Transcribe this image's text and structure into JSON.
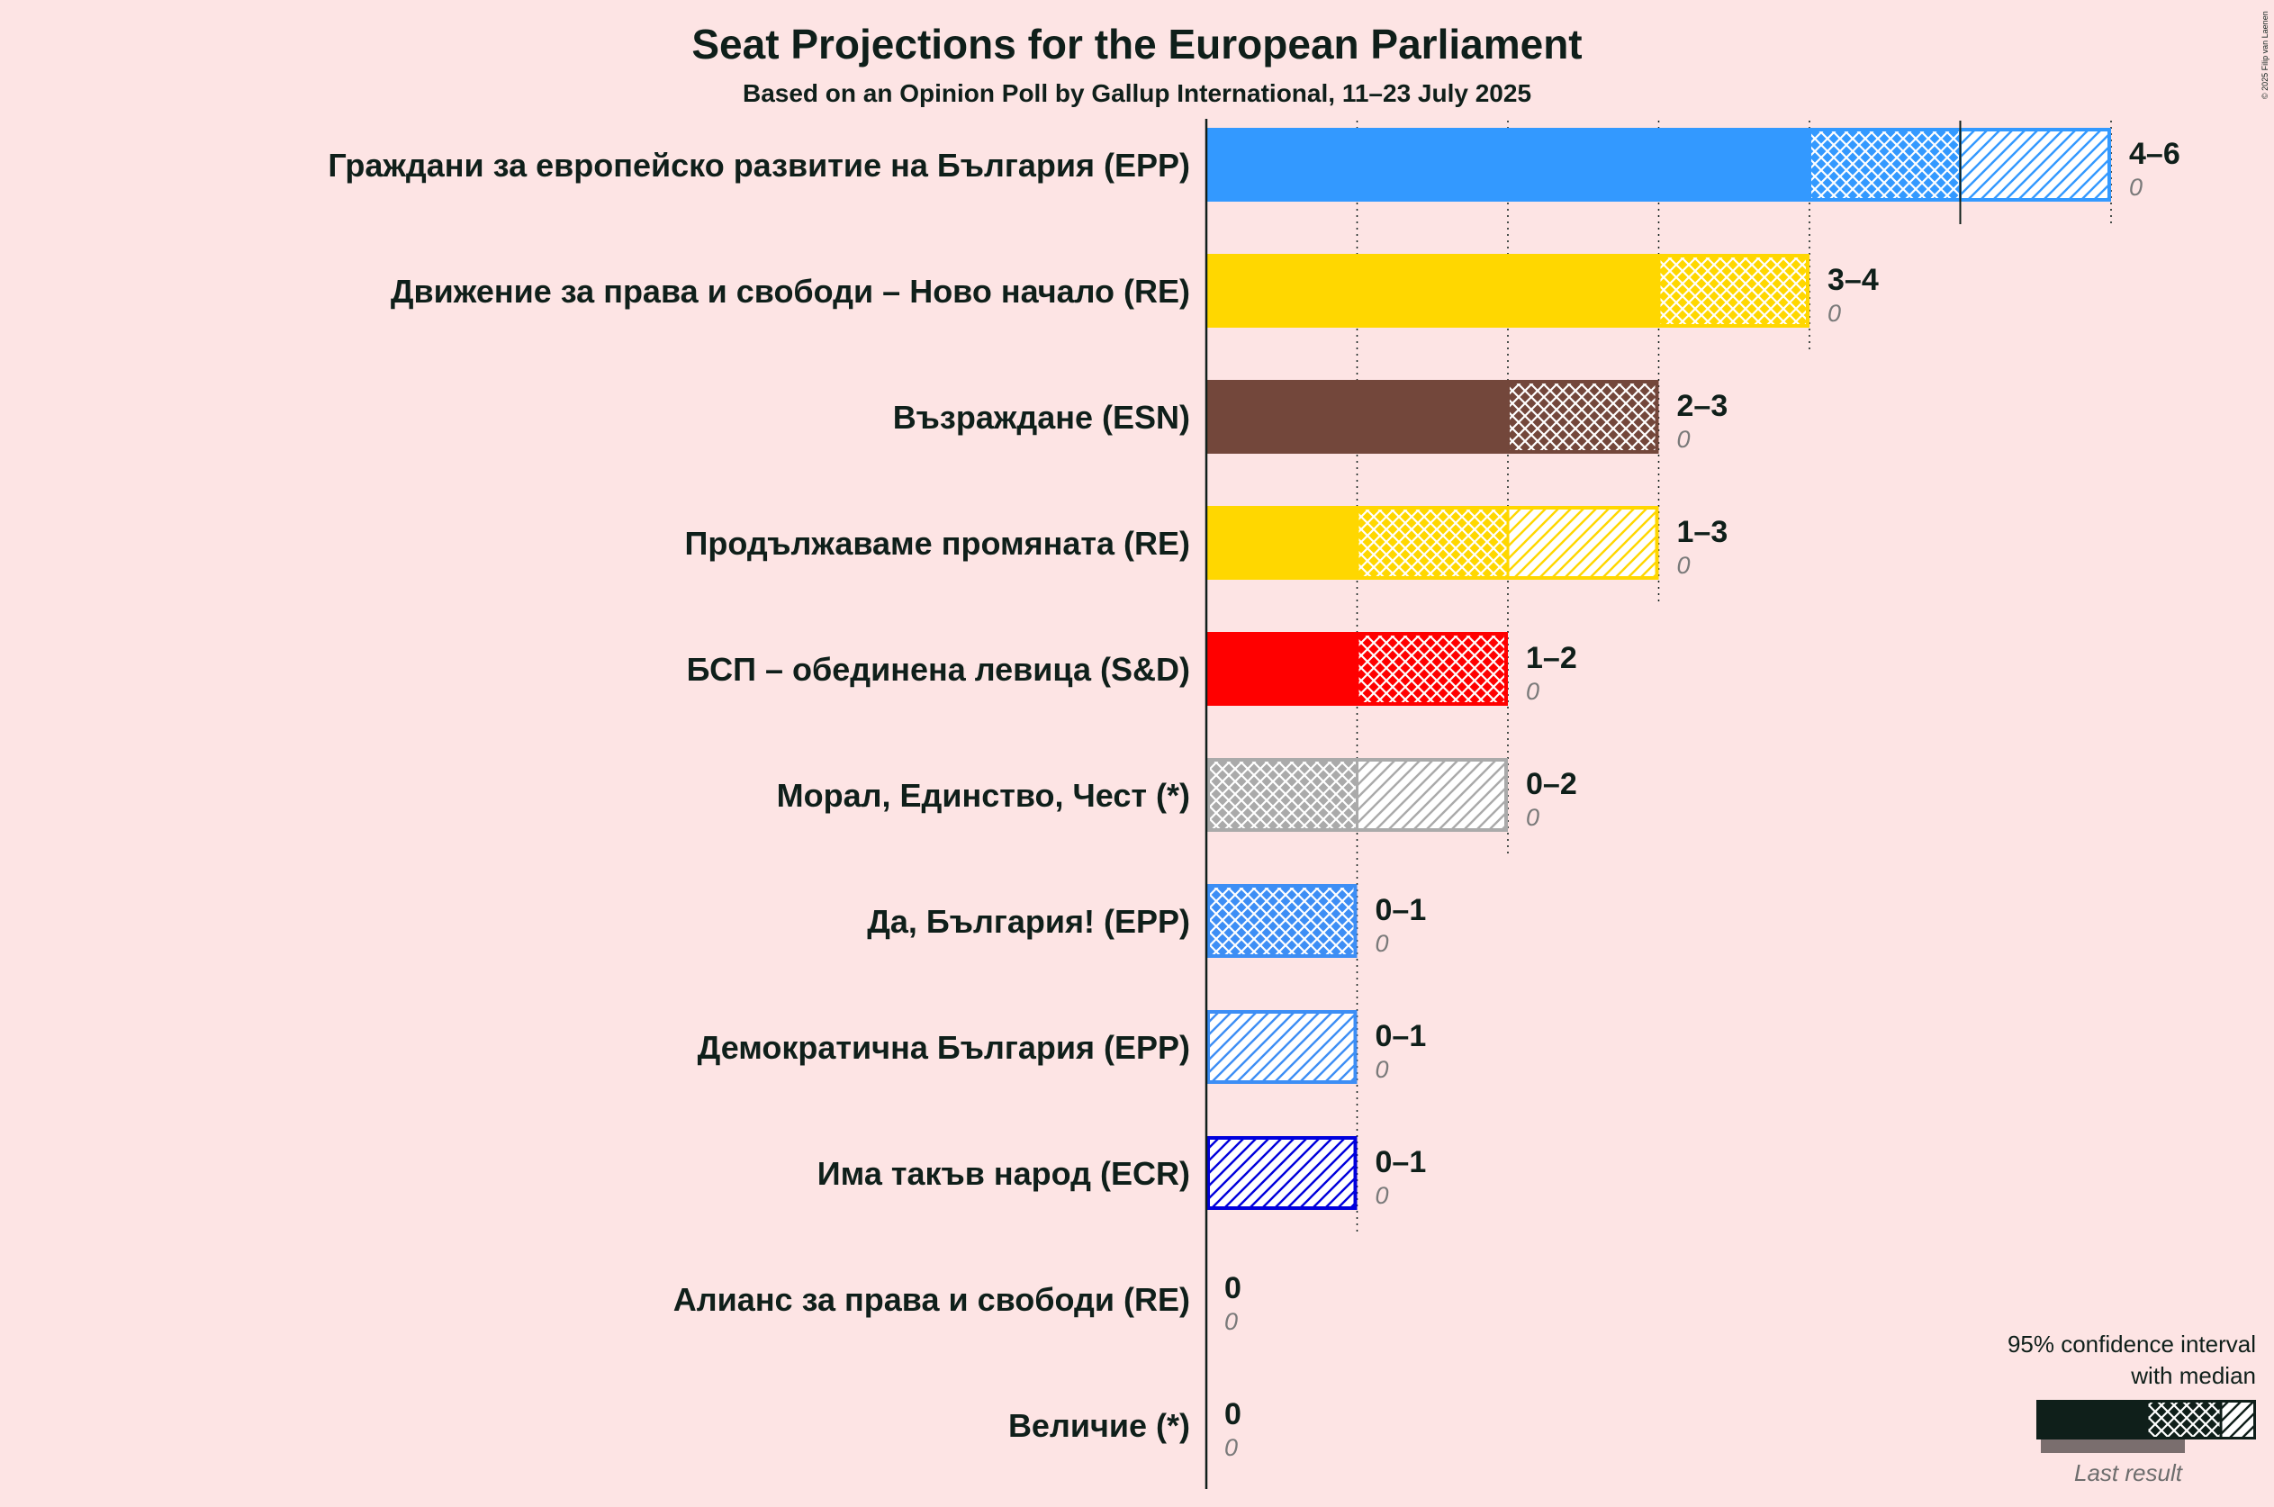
{
  "chart_data": {
    "type": "bar",
    "title": "Seat Projections for the European Parliament",
    "subtitle": "Based on an Opinion Poll by Gallup International, 11–23 July 2025",
    "copyright": "© 2025 Filip van Laenen",
    "xlim": [
      0,
      6
    ],
    "parties": [
      {
        "name": "Граждани за европейско развитие на България (EPP)",
        "low": 4,
        "median": 5,
        "high": 6,
        "range": "4–6",
        "last": "0",
        "color": "#3399ff"
      },
      {
        "name": "Движение за права и свободи – Ново начало (RE)",
        "low": 3,
        "median": 4,
        "high": 4,
        "range": "3–4",
        "last": "0",
        "color": "#ffd700"
      },
      {
        "name": "Възраждане (ESN)",
        "low": 2,
        "median": 3,
        "high": 3,
        "range": "2–3",
        "last": "0",
        "color": "#73473b"
      },
      {
        "name": "Продължаваме промяната (RE)",
        "low": 1,
        "median": 2,
        "high": 3,
        "range": "1–3",
        "last": "0",
        "color": "#ffd700"
      },
      {
        "name": "БСП – обединена левица (S&D)",
        "low": 1,
        "median": 2,
        "high": 2,
        "range": "1–2",
        "last": "0",
        "color": "#ff0000"
      },
      {
        "name": "Морал, Единство, Чест (*)",
        "low": 0,
        "median": 1,
        "high": 2,
        "range": "0–2",
        "last": "0",
        "color": "#aaaaaa"
      },
      {
        "name": "Да, България! (EPP)",
        "low": 0,
        "median": 1,
        "high": 1,
        "range": "0–1",
        "last": "0",
        "color": "#3d8ef5"
      },
      {
        "name": "Демократична България (EPP)",
        "low": 0,
        "median": 0,
        "high": 1,
        "range": "0–1",
        "last": "0",
        "color": "#3d8ef5"
      },
      {
        "name": "Има такъв народ (ECR)",
        "low": 0,
        "median": 0,
        "high": 1,
        "range": "0–1",
        "last": "0",
        "color": "#0000dd"
      },
      {
        "name": "Алианс за права и свободи (RE)",
        "low": 0,
        "median": 0,
        "high": 0,
        "range": "0",
        "last": "0",
        "color": "#ffd700"
      },
      {
        "name": "Величие (*)",
        "low": 0,
        "median": 0,
        "high": 0,
        "range": "0",
        "last": "0",
        "color": "#aaaaaa"
      }
    ],
    "legend": {
      "line1": "95% confidence interval",
      "line2": "with median",
      "last_label": "Last result",
      "dark_color": "#0f1f1a",
      "last_color": "#7a6e6e"
    }
  }
}
